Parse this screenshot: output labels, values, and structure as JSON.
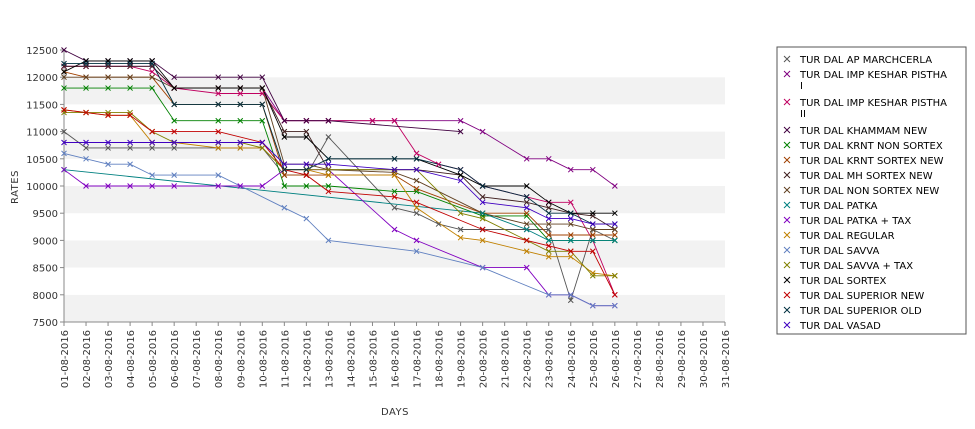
{
  "chart_data": {
    "type": "line",
    "title": "",
    "xlabel": "DAYS",
    "ylabel": "RATES",
    "ylim": [
      7500,
      12500
    ],
    "y_ticks": [
      7500,
      8000,
      8500,
      9000,
      9500,
      10000,
      10500,
      11000,
      11500,
      12000,
      12500
    ],
    "grid": "horizontal bands",
    "legend_position": "right",
    "categories": [
      "01-08-2016",
      "02-08-2016",
      "03-08-2016",
      "04-08-2016",
      "05-08-2016",
      "06-08-2016",
      "07-08-2016",
      "08-08-2016",
      "09-08-2016",
      "10-08-2016",
      "11-08-2016",
      "12-08-2016",
      "13-08-2016",
      "14-08-2016",
      "15-08-2016",
      "16-08-2016",
      "17-08-2016",
      "18-08-2016",
      "19-08-2016",
      "20-08-2016",
      "21-08-2016",
      "22-08-2016",
      "23-08-2016",
      "24-08-2016",
      "25-08-2016",
      "26-08-2016",
      "27-08-2016",
      "28-08-2016",
      "29-08-2016",
      "30-08-2016",
      "31-08-2016"
    ],
    "series": [
      {
        "name": "TUR DAL AP MARCHCERLA",
        "color": "#555555",
        "values": [
          11000,
          10700,
          10700,
          10700,
          10700,
          10700,
          null,
          10700,
          10700,
          10700,
          10200,
          10200,
          10900,
          null,
          null,
          9600,
          9500,
          9300,
          9200,
          9200,
          null,
          9200,
          9200,
          7900,
          9200,
          9000,
          null,
          null,
          null,
          null,
          null
        ]
      },
      {
        "name": "TUR DAL IMP KESHAR PISTHA I",
        "color": "#800080",
        "values": [
          12200,
          12200,
          12200,
          12200,
          12200,
          11800,
          null,
          11800,
          11800,
          11800,
          11200,
          11200,
          11200,
          null,
          11200,
          11200,
          null,
          null,
          11200,
          11000,
          null,
          10500,
          10500,
          10300,
          10300,
          10000,
          null,
          null,
          null,
          null,
          null
        ]
      },
      {
        "name": "TUR DAL IMP KESHAR PISTHA II",
        "color": "#c00060",
        "values": [
          12200,
          12200,
          12200,
          12200,
          12100,
          11800,
          null,
          11700,
          11700,
          11700,
          11200,
          11200,
          11200,
          null,
          11200,
          11200,
          10600,
          10400,
          10300,
          10000,
          null,
          9800,
          9700,
          9700,
          9000,
          8000,
          null,
          null,
          null,
          null,
          null
        ]
      },
      {
        "name": "TUR DAL KHAMMAM NEW",
        "color": "#400040",
        "values": [
          12500,
          12300,
          12300,
          12300,
          12300,
          12000,
          null,
          12000,
          12000,
          12000,
          11200,
          11200,
          11200,
          null,
          null,
          null,
          null,
          null,
          11000,
          null,
          null,
          null,
          null,
          null,
          null,
          null,
          null,
          null,
          null,
          null,
          null
        ]
      },
      {
        "name": "TUR DAL KRNT NON SORTEX",
        "color": "#008000",
        "values": [
          11800,
          11800,
          11800,
          11800,
          11800,
          11200,
          null,
          11200,
          11200,
          11200,
          10000,
          10000,
          10000,
          null,
          null,
          9900,
          9900,
          null,
          null,
          9450,
          null,
          9450,
          9000,
          9000,
          9000,
          9000,
          null,
          null,
          null,
          null,
          null
        ]
      },
      {
        "name": "TUR DAL KRNT SORTEX NEW",
        "color": "#a04000",
        "values": [
          12100,
          12000,
          12000,
          12000,
          12000,
          11500,
          null,
          11500,
          11500,
          11500,
          10200,
          10200,
          10200,
          null,
          null,
          10200,
          9950,
          null,
          null,
          9500,
          null,
          9500,
          9100,
          9100,
          9100,
          9100,
          null,
          null,
          null,
          null,
          null
        ]
      },
      {
        "name": "TUR DAL MH SORTEX NEW",
        "color": "#402020",
        "values": [
          12200,
          12200,
          12200,
          12200,
          12200,
          11800,
          null,
          11800,
          11800,
          11800,
          11000,
          11000,
          10300,
          null,
          null,
          10300,
          10300,
          null,
          10200,
          9800,
          null,
          9700,
          9600,
          9500,
          9450,
          9200,
          null,
          null,
          null,
          null,
          null
        ]
      },
      {
        "name": "TUR DAL NON SORTEX NEW",
        "color": "#604020",
        "values": [
          12000,
          12000,
          12000,
          12000,
          12000,
          11800,
          null,
          11800,
          11800,
          11800,
          10400,
          10400,
          10300,
          null,
          null,
          10250,
          10100,
          null,
          null,
          9500,
          null,
          9300,
          9300,
          9300,
          9200,
          9200,
          null,
          null,
          null,
          null,
          null
        ]
      },
      {
        "name": "TUR DAL PATKA",
        "color": "#008080",
        "values": [
          10300,
          null,
          null,
          null,
          null,
          null,
          null,
          null,
          null,
          null,
          null,
          null,
          null,
          null,
          null,
          null,
          null,
          null,
          null,
          9500,
          null,
          9200,
          9000,
          9000,
          9000,
          9000,
          null,
          null,
          null,
          null,
          null
        ]
      },
      {
        "name": "TUR DAL PATKA + TAX",
        "color": "#8000c0",
        "values": [
          10300,
          10000,
          10000,
          10000,
          10000,
          10000,
          null,
          10000,
          10000,
          10000,
          10300,
          10300,
          10300,
          null,
          null,
          9200,
          9000,
          null,
          null,
          8500,
          null,
          8500,
          8000,
          8000,
          7800,
          7800,
          null,
          null,
          null,
          null,
          null
        ]
      },
      {
        "name": "TUR DAL REGULAR",
        "color": "#c08000",
        "values": [
          11400,
          11350,
          11300,
          11300,
          10800,
          10800,
          null,
          10700,
          10700,
          10700,
          10300,
          10300,
          10200,
          null,
          null,
          10200,
          9600,
          null,
          9050,
          9000,
          null,
          8800,
          8700,
          8700,
          8400,
          8350,
          null,
          null,
          null,
          null,
          null
        ]
      },
      {
        "name": "TUR DAL SAVVA",
        "color": "#6080c0",
        "values": [
          10600,
          10500,
          10400,
          10400,
          10200,
          10200,
          null,
          10200,
          null,
          null,
          9600,
          9400,
          9000,
          null,
          null,
          null,
          8800,
          null,
          null,
          8500,
          null,
          null,
          8000,
          8000,
          7800,
          7800,
          null,
          null,
          null,
          null,
          null
        ]
      },
      {
        "name": "TUR DAL SAVVA + TAX",
        "color": "#808000",
        "values": [
          11350,
          11350,
          11350,
          11350,
          11000,
          10800,
          null,
          10800,
          10800,
          10700,
          10300,
          10300,
          10300,
          null,
          null,
          10300,
          10300,
          null,
          9500,
          9400,
          null,
          9000,
          8800,
          8800,
          8350,
          8350,
          null,
          null,
          null,
          null,
          null
        ]
      },
      {
        "name": "TUR DAL SORTEX",
        "color": "#000000",
        "values": [
          12100,
          12300,
          12300,
          12300,
          12300,
          11800,
          null,
          11800,
          11800,
          11800,
          10900,
          10900,
          10500,
          null,
          null,
          10500,
          10500,
          null,
          10200,
          10000,
          null,
          10000,
          9700,
          9500,
          9500,
          9500,
          null,
          null,
          null,
          null,
          null
        ]
      },
      {
        "name": "TUR DAL SUPERIOR NEW",
        "color": "#c00000",
        "values": [
          11400,
          11350,
          11300,
          11300,
          11000,
          11000,
          null,
          11000,
          null,
          10800,
          10300,
          10200,
          9900,
          null,
          null,
          9800,
          9700,
          null,
          null,
          9200,
          null,
          9000,
          8900,
          8800,
          8800,
          8000,
          null,
          null,
          null,
          null,
          null
        ]
      },
      {
        "name": "TUR DAL SUPERIOR OLD",
        "color": "#003040",
        "values": [
          12250,
          12250,
          12250,
          12250,
          12250,
          11500,
          null,
          11500,
          11500,
          11500,
          10300,
          10300,
          10500,
          null,
          null,
          10500,
          10500,
          null,
          10300,
          10000,
          null,
          9800,
          9500,
          9500,
          9300,
          9300,
          null,
          null,
          null,
          null,
          null
        ]
      },
      {
        "name": "TUR DAL VASAD",
        "color": "#4000c0",
        "values": [
          10800,
          10800,
          10800,
          10800,
          10800,
          10800,
          null,
          10800,
          10800,
          10800,
          10400,
          10400,
          10400,
          null,
          null,
          10300,
          10300,
          null,
          10100,
          9700,
          null,
          9600,
          9400,
          9400,
          9300,
          9300,
          null,
          null,
          null,
          null,
          null
        ]
      }
    ]
  }
}
